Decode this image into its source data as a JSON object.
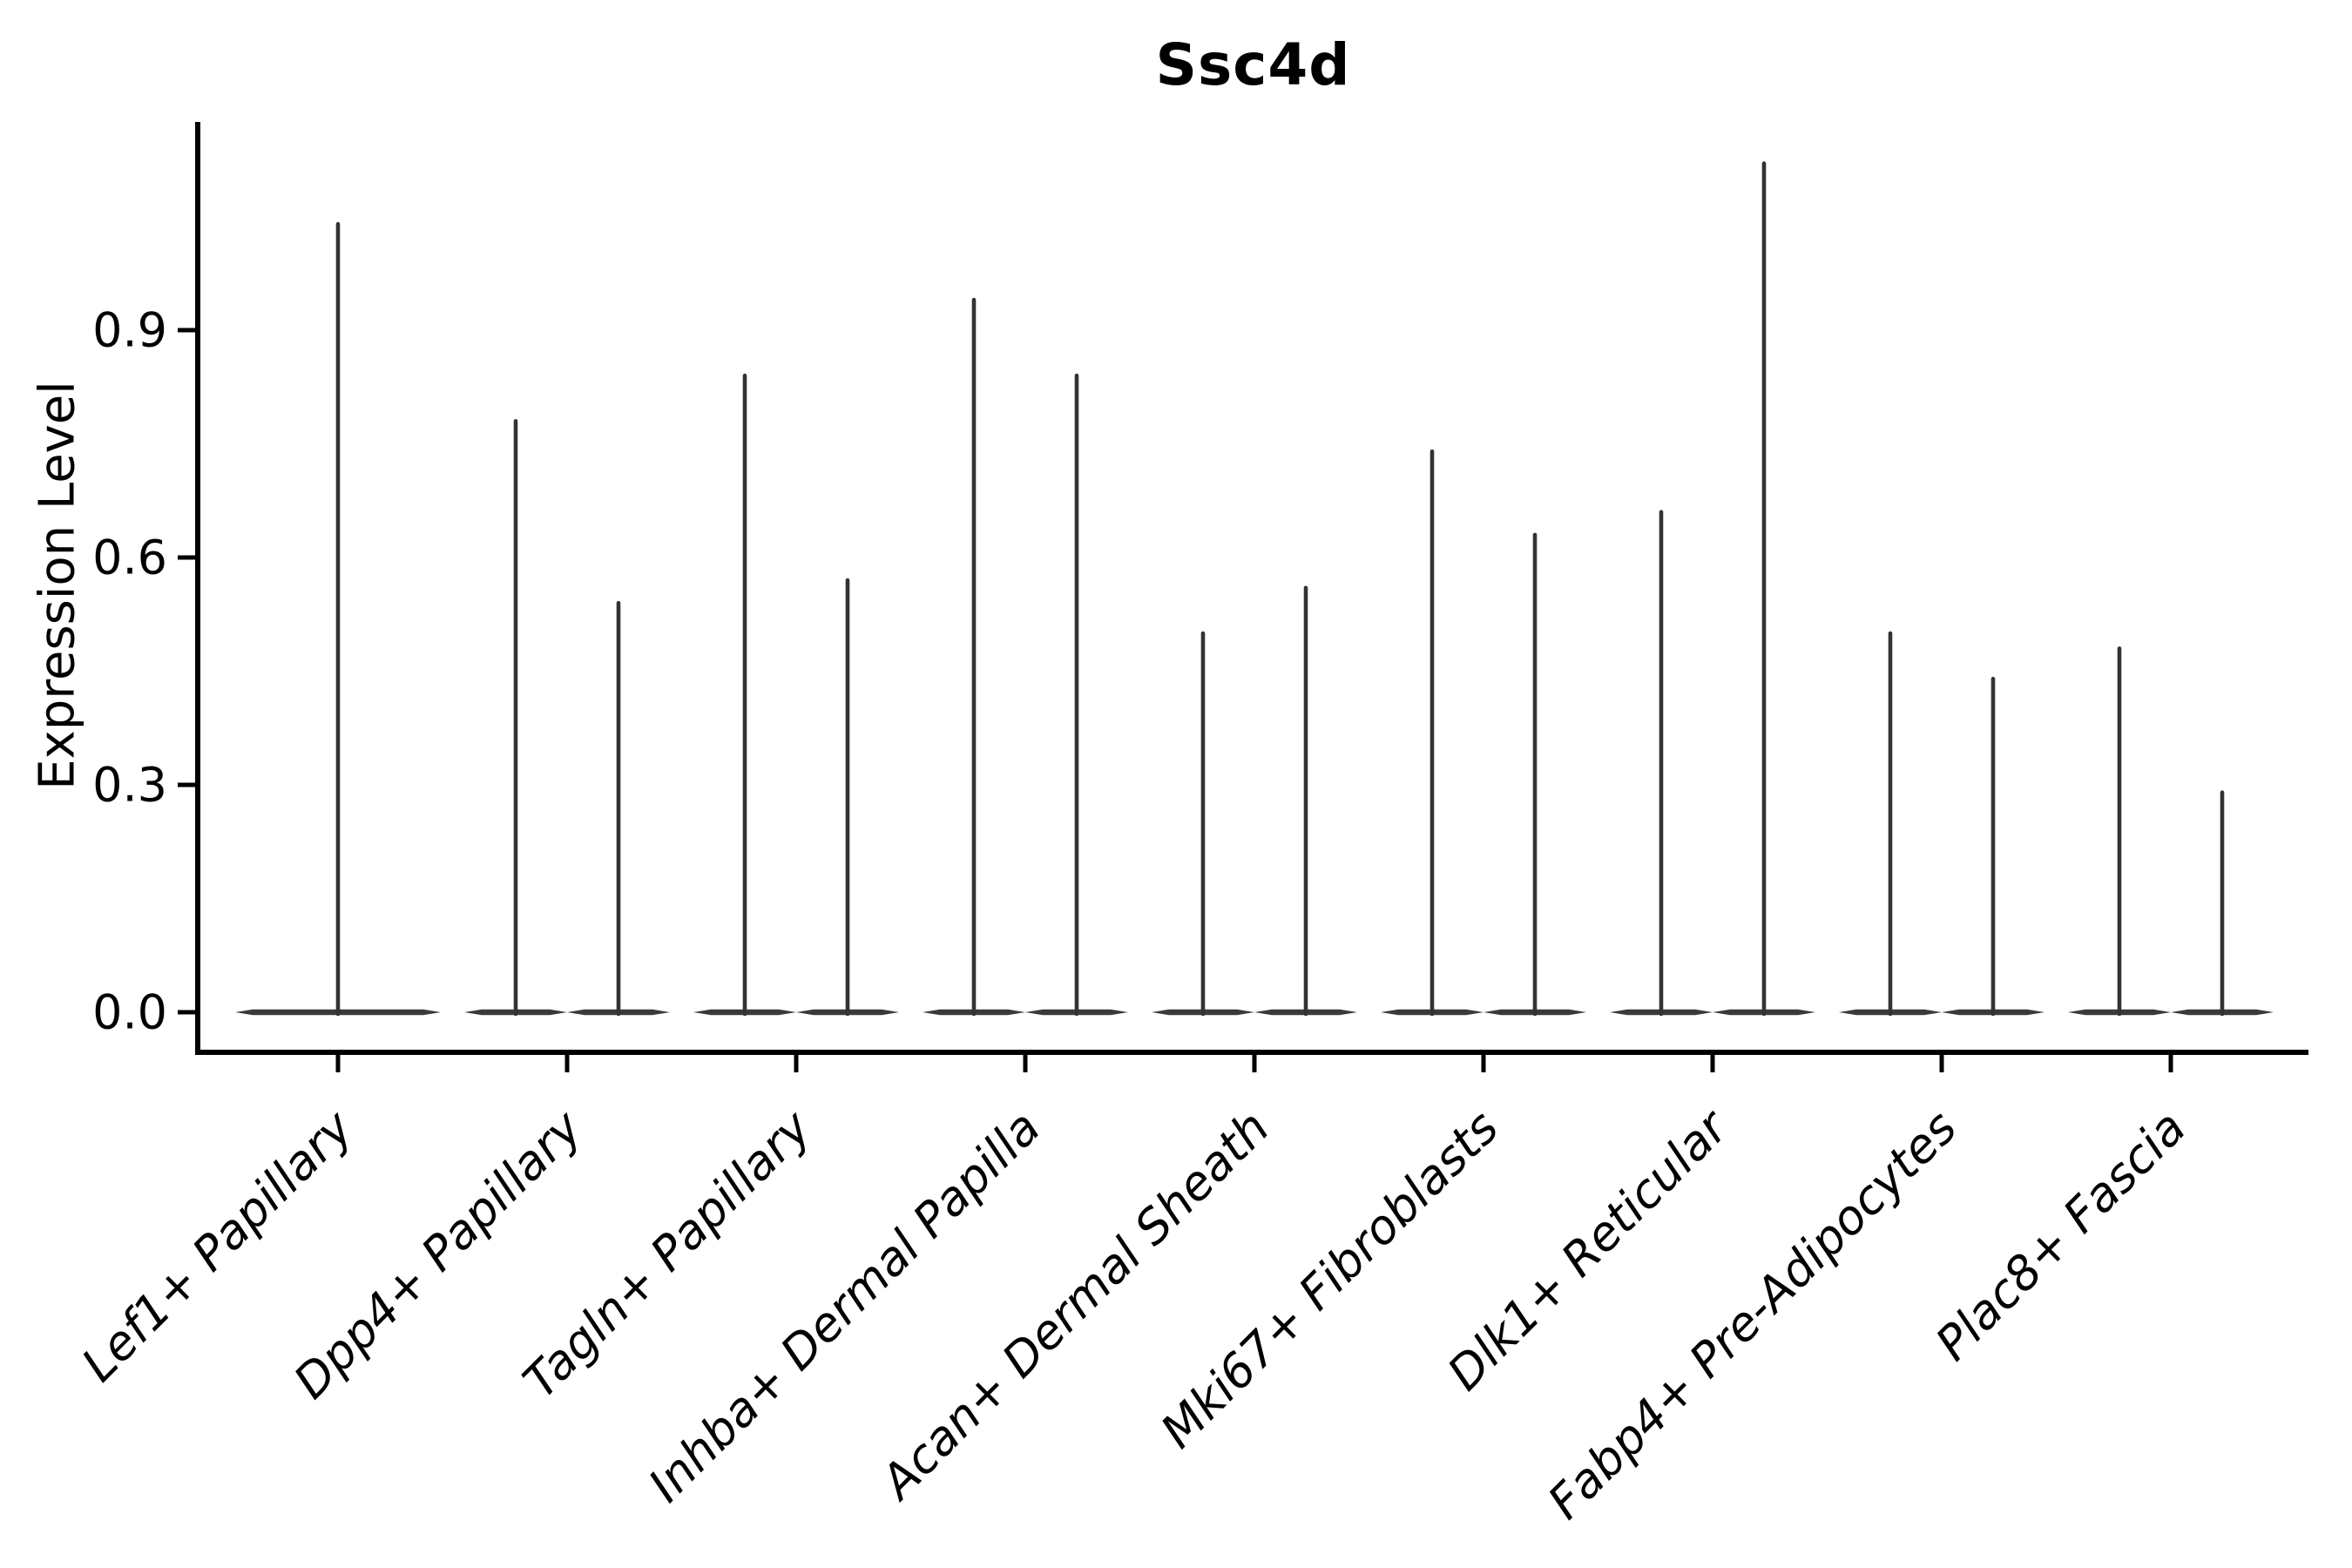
{
  "chart_data": {
    "type": "violin",
    "title": "Ssc4d",
    "xlabel": "",
    "ylabel": "Expression Level",
    "grid": false,
    "legend": null,
    "background": "#ffffff",
    "colors": {
      "violin": "#3a3a3a",
      "spike": "#333333",
      "axis": "#000000",
      "text": "#000000"
    },
    "ytick_labels": [
      "0.0",
      "0.3",
      "0.6",
      "0.9"
    ],
    "ytick_values": [
      0.0,
      0.3,
      0.6,
      0.9
    ],
    "ylim": [
      -0.05,
      1.18
    ],
    "categories": [
      "Lef1+ Papillary",
      "Dpp4+ Papillary",
      "Tagln+ Papillary",
      "Inhba+ Dermal Papilla",
      "Acan+ Dermal Sheath",
      "Mki67+ Fibroblasts",
      "Dlk1+ Reticular",
      "Fabp4+ Pre-Adipocytes",
      "Plac8+ Fascia"
    ],
    "violins": [
      {
        "category": "Lef1+ Papillary",
        "split": false,
        "max_values": [
          1.04
        ]
      },
      {
        "category": "Dpp4+ Papillary",
        "split": true,
        "max_values": [
          0.78,
          0.54
        ]
      },
      {
        "category": "Tagln+ Papillary",
        "split": true,
        "max_values": [
          0.84,
          0.57
        ]
      },
      {
        "category": "Inhba+ Dermal Papilla",
        "split": true,
        "max_values": [
          0.94,
          0.84
        ]
      },
      {
        "category": "Acan+ Dermal Sheath",
        "split": true,
        "max_values": [
          0.5,
          0.56
        ]
      },
      {
        "category": "Mki67+ Fibroblasts",
        "split": true,
        "max_values": [
          0.74,
          0.63
        ]
      },
      {
        "category": "Dlk1+ Reticular",
        "split": true,
        "max_values": [
          0.66,
          1.12
        ]
      },
      {
        "category": "Fabp4+ Pre-Adipocytes",
        "split": true,
        "max_values": [
          0.5,
          0.44
        ]
      },
      {
        "category": "Plac8+ Fascia",
        "split": true,
        "max_values": [
          0.48,
          0.29
        ]
      }
    ],
    "baseline_value": 0.0
  }
}
